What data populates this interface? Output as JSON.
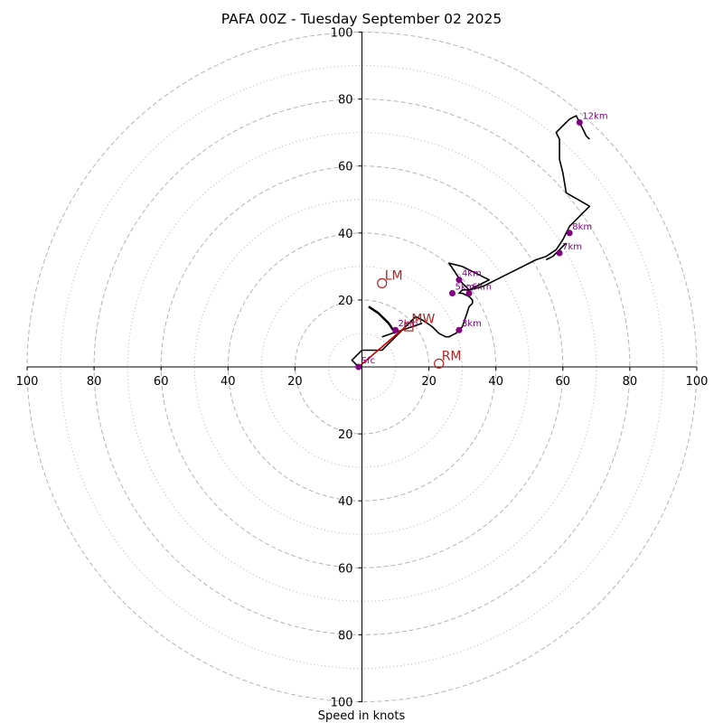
{
  "chart_data": {
    "type": "line",
    "chart_kind": "hodograph",
    "title": "PAFA 00Z - Tuesday September 02 2025",
    "xlabel": "Speed in knots",
    "ylabel": "",
    "xlim": [
      -100,
      100
    ],
    "ylim": [
      -100,
      100
    ],
    "ring_major": [
      20,
      40,
      60,
      80,
      100
    ],
    "ring_minor": [
      10,
      30,
      50,
      70,
      90
    ],
    "grid": true,
    "x_ticks": [
      {
        "value": -100,
        "label": "100"
      },
      {
        "value": -80,
        "label": "80"
      },
      {
        "value": -60,
        "label": "60"
      },
      {
        "value": -40,
        "label": "40"
      },
      {
        "value": -20,
        "label": "20"
      },
      {
        "value": 20,
        "label": "20"
      },
      {
        "value": 40,
        "label": "40"
      },
      {
        "value": 60,
        "label": "60"
      },
      {
        "value": 80,
        "label": "80"
      },
      {
        "value": 100,
        "label": "100"
      }
    ],
    "y_ticks": [
      {
        "value": 100,
        "label": "100"
      },
      {
        "value": 80,
        "label": "80"
      },
      {
        "value": 60,
        "label": "60"
      },
      {
        "value": 40,
        "label": "40"
      },
      {
        "value": 20,
        "label": "20"
      },
      {
        "value": -20,
        "label": "20"
      },
      {
        "value": -40,
        "label": "40"
      },
      {
        "value": -60,
        "label": "60"
      },
      {
        "value": -80,
        "label": "80"
      },
      {
        "value": -100,
        "label": "100"
      }
    ],
    "series": [
      {
        "color": "#000000",
        "points": [
          [
            -1,
            0
          ],
          [
            -3,
            2
          ],
          [
            -1,
            4
          ],
          [
            0,
            5
          ],
          [
            4,
            5
          ],
          [
            6,
            5
          ],
          [
            7,
            6
          ],
          [
            10,
            9
          ],
          [
            13,
            12
          ],
          [
            16,
            15
          ],
          [
            18,
            14
          ],
          [
            21,
            12
          ],
          [
            23,
            10
          ],
          [
            25,
            9
          ],
          [
            26,
            9
          ],
          [
            28,
            10
          ],
          [
            30,
            12
          ],
          [
            31,
            15
          ],
          [
            32,
            18
          ],
          [
            33,
            19
          ],
          [
            33,
            20
          ],
          [
            32,
            21
          ],
          [
            30,
            22
          ],
          [
            29,
            22
          ],
          [
            30,
            23
          ],
          [
            32,
            23
          ],
          [
            34,
            24
          ],
          [
            36,
            25
          ],
          [
            38,
            26
          ],
          [
            34,
            28
          ],
          [
            32,
            29
          ],
          [
            30,
            30
          ],
          [
            26,
            31
          ],
          [
            28,
            28
          ],
          [
            30,
            25
          ],
          [
            32,
            23
          ],
          [
            36,
            24
          ],
          [
            40,
            26
          ],
          [
            44,
            28
          ],
          [
            48,
            30
          ],
          [
            52,
            32
          ],
          [
            55,
            33
          ],
          [
            58,
            35
          ],
          [
            60,
            38
          ],
          [
            62,
            42
          ],
          [
            66,
            46
          ],
          [
            68,
            48
          ],
          [
            61,
            52
          ],
          [
            60,
            58
          ],
          [
            59,
            62
          ],
          [
            59,
            64
          ],
          [
            59,
            65
          ],
          [
            59,
            67
          ],
          [
            59,
            68
          ],
          [
            58,
            70
          ],
          [
            60,
            72
          ],
          [
            62,
            74
          ],
          [
            64,
            75
          ],
          [
            65,
            73
          ],
          [
            66,
            71
          ],
          [
            67,
            69
          ],
          [
            68,
            68
          ]
        ]
      },
      {
        "color": "#000000",
        "points": [
          [
            10,
            10
          ],
          [
            8,
            13
          ],
          [
            5,
            16
          ],
          [
            2,
            18
          ]
        ]
      },
      {
        "color": "#000000",
        "points": [
          [
            6,
            9
          ],
          [
            9,
            10
          ],
          [
            12,
            11
          ],
          [
            15,
            12
          ],
          [
            18,
            13
          ]
        ]
      },
      {
        "color": "#000000",
        "points": [
          [
            55,
            32
          ],
          [
            57,
            33
          ],
          [
            59,
            35
          ],
          [
            61,
            37
          ]
        ]
      },
      {
        "color": "#cc0000",
        "points": [
          [
            -1,
            0
          ],
          [
            13,
            12
          ]
        ]
      }
    ],
    "height_points": [
      {
        "label": "Sfc",
        "x": -1,
        "y": 0
      },
      {
        "label": "2km",
        "x": 10,
        "y": 11
      },
      {
        "label": "3km",
        "x": 29,
        "y": 11
      },
      {
        "label": "4km",
        "x": 29,
        "y": 26
      },
      {
        "label": "5km",
        "x": 27,
        "y": 22
      },
      {
        "label": "6km",
        "x": 32,
        "y": 22
      },
      {
        "label": "7km",
        "x": 59,
        "y": 34
      },
      {
        "label": "8km",
        "x": 62,
        "y": 40
      },
      {
        "label": "12km",
        "x": 65,
        "y": 73
      }
    ],
    "motion_markers": [
      {
        "label": "LM",
        "x": 6,
        "y": 25,
        "marker": "circle"
      },
      {
        "label": "RM",
        "x": 23,
        "y": 1,
        "marker": "circle"
      },
      {
        "label": "MW",
        "x": 14,
        "y": 12,
        "marker": "square"
      }
    ],
    "colors": {
      "trace": "#000000",
      "height_points": "#800080",
      "motion": "#b22222",
      "shear_vector": "#cc0000",
      "grid": "#b4b4b4"
    }
  }
}
